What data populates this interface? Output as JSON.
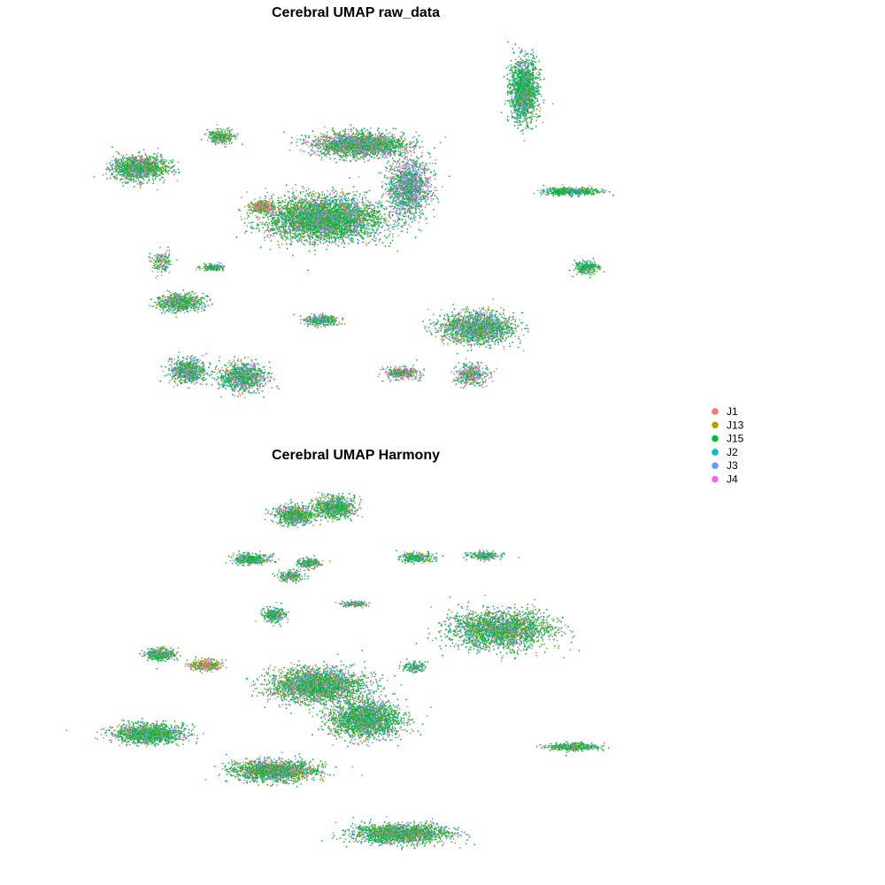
{
  "chart_data": [
    {
      "type": "scatter",
      "title": "Cerebral UMAP raw_data",
      "xlabel": "",
      "ylabel": "",
      "grid": false,
      "axes": false,
      "legend": "right",
      "clusters": [
        {
          "cx": -2.2,
          "cy": 4.2,
          "sx": 0.9,
          "sy": 0.55,
          "n": 1300,
          "mix": [
            0.05,
            0.15,
            0.55,
            0.02,
            0.13,
            0.1
          ]
        },
        {
          "cx": 0.8,
          "cy": 5.8,
          "sx": 0.45,
          "sy": 0.3,
          "n": 280,
          "mix": [
            0.05,
            0.15,
            0.6,
            0.02,
            0.1,
            0.08
          ]
        },
        {
          "cx": 2.3,
          "cy": 2.2,
          "sx": 0.4,
          "sy": 0.28,
          "n": 300,
          "mix": [
            0.1,
            0.4,
            0.2,
            0.02,
            0.08,
            0.2
          ]
        },
        {
          "cx": 4.6,
          "cy": 1.6,
          "sx": 1.9,
          "sy": 1.0,
          "n": 4200,
          "mix": [
            0.05,
            0.12,
            0.55,
            0.02,
            0.16,
            0.1
          ]
        },
        {
          "cx": 5.9,
          "cy": 5.4,
          "sx": 1.5,
          "sy": 0.55,
          "n": 2200,
          "mix": [
            0.05,
            0.1,
            0.5,
            0.02,
            0.15,
            0.18
          ]
        },
        {
          "cx": 7.7,
          "cy": 3.2,
          "sx": 0.7,
          "sy": 1.3,
          "n": 1400,
          "mix": [
            0.03,
            0.05,
            0.4,
            0.02,
            0.25,
            0.25
          ]
        },
        {
          "cx": 11.9,
          "cy": 8.2,
          "sx": 0.45,
          "sy": 1.4,
          "n": 1700,
          "mix": [
            0.03,
            0.08,
            0.6,
            0.02,
            0.2,
            0.07
          ]
        },
        {
          "cx": 13.6,
          "cy": 3.0,
          "sx": 0.9,
          "sy": 0.16,
          "n": 500,
          "mix": [
            0.03,
            0.1,
            0.65,
            0.02,
            0.15,
            0.05
          ]
        },
        {
          "cx": 14.2,
          "cy": -0.9,
          "sx": 0.4,
          "sy": 0.3,
          "n": 260,
          "mix": [
            0.03,
            0.05,
            0.7,
            0.02,
            0.15,
            0.05
          ]
        },
        {
          "cx": 10.2,
          "cy": -4.0,
          "sx": 1.2,
          "sy": 0.7,
          "n": 1800,
          "mix": [
            0.03,
            0.15,
            0.45,
            0.02,
            0.25,
            0.1
          ]
        },
        {
          "cx": 10.0,
          "cy": -6.4,
          "sx": 0.5,
          "sy": 0.5,
          "n": 400,
          "mix": [
            0.05,
            0.15,
            0.3,
            0.02,
            0.2,
            0.28
          ]
        },
        {
          "cx": 7.4,
          "cy": -6.3,
          "sx": 0.55,
          "sy": 0.28,
          "n": 350,
          "mix": [
            0.05,
            0.1,
            0.45,
            0.02,
            0.08,
            0.3
          ]
        },
        {
          "cx": -0.7,
          "cy": -2.7,
          "sx": 0.75,
          "sy": 0.4,
          "n": 700,
          "mix": [
            0.05,
            0.15,
            0.5,
            0.02,
            0.18,
            0.1
          ]
        },
        {
          "cx": 0.5,
          "cy": -0.9,
          "sx": 0.4,
          "sy": 0.16,
          "n": 160,
          "mix": [
            0.05,
            0.1,
            0.55,
            0.02,
            0.18,
            0.1
          ]
        },
        {
          "cx": -0.4,
          "cy": -6.2,
          "sx": 0.6,
          "sy": 0.55,
          "n": 700,
          "mix": [
            0.05,
            0.1,
            0.5,
            0.02,
            0.23,
            0.1
          ]
        },
        {
          "cx": 1.6,
          "cy": -6.5,
          "sx": 0.75,
          "sy": 0.65,
          "n": 1000,
          "mix": [
            0.05,
            0.1,
            0.5,
            0.02,
            0.23,
            0.1
          ]
        },
        {
          "cx": 4.5,
          "cy": -3.6,
          "sx": 0.55,
          "sy": 0.25,
          "n": 350,
          "mix": [
            0.05,
            0.1,
            0.45,
            0.02,
            0.23,
            0.15
          ]
        },
        {
          "cx": -1.4,
          "cy": -0.6,
          "sx": 0.3,
          "sy": 0.5,
          "n": 160,
          "mix": [
            0.05,
            0.1,
            0.45,
            0.02,
            0.18,
            0.2
          ]
        }
      ],
      "xlim": [
        -6.0,
        18.0
      ],
      "ylim": [
        -8.5,
        11.0
      ]
    },
    {
      "type": "scatter",
      "title": "Cerebral UMAP Harmony",
      "xlabel": "",
      "ylabel": "",
      "grid": false,
      "axes": false,
      "legend": "right",
      "clusters": [
        {
          "cx": 0.1,
          "cy": 10.0,
          "sx": 0.6,
          "sy": 0.45,
          "n": 700,
          "mix": [
            0.05,
            0.15,
            0.5,
            0.02,
            0.18,
            0.1
          ]
        },
        {
          "cx": 1.5,
          "cy": 10.4,
          "sx": 0.65,
          "sy": 0.5,
          "n": 800,
          "mix": [
            0.05,
            0.15,
            0.5,
            0.02,
            0.18,
            0.1
          ]
        },
        {
          "cx": -1.4,
          "cy": 7.6,
          "sx": 0.55,
          "sy": 0.28,
          "n": 400,
          "mix": [
            0.05,
            0.1,
            0.55,
            0.02,
            0.18,
            0.1
          ]
        },
        {
          "cx": 0.6,
          "cy": 7.4,
          "sx": 0.35,
          "sy": 0.25,
          "n": 220,
          "mix": [
            0.05,
            0.1,
            0.55,
            0.02,
            0.18,
            0.1
          ]
        },
        {
          "cx": -0.6,
          "cy": 4.6,
          "sx": 0.35,
          "sy": 0.35,
          "n": 300,
          "mix": [
            0.05,
            0.1,
            0.55,
            0.02,
            0.18,
            0.1
          ]
        },
        {
          "cx": 2.2,
          "cy": 5.2,
          "sx": 0.4,
          "sy": 0.15,
          "n": 150,
          "mix": [
            0.05,
            0.15,
            0.45,
            0.02,
            0.18,
            0.15
          ]
        },
        {
          "cx": 4.4,
          "cy": 7.7,
          "sx": 0.55,
          "sy": 0.22,
          "n": 260,
          "mix": [
            0.05,
            0.1,
            0.6,
            0.02,
            0.18,
            0.05
          ]
        },
        {
          "cx": 6.8,
          "cy": 7.8,
          "sx": 0.5,
          "sy": 0.2,
          "n": 220,
          "mix": [
            0.05,
            0.1,
            0.55,
            0.02,
            0.18,
            0.1
          ]
        },
        {
          "cx": 7.3,
          "cy": 3.8,
          "sx": 1.6,
          "sy": 0.9,
          "n": 2300,
          "mix": [
            0.05,
            0.12,
            0.55,
            0.02,
            0.18,
            0.08
          ]
        },
        {
          "cx": -4.6,
          "cy": 2.5,
          "sx": 0.45,
          "sy": 0.3,
          "n": 350,
          "mix": [
            0.05,
            0.1,
            0.6,
            0.02,
            0.15,
            0.08
          ]
        },
        {
          "cx": -3.0,
          "cy": 1.9,
          "sx": 0.5,
          "sy": 0.25,
          "n": 350,
          "mix": [
            0.1,
            0.4,
            0.2,
            0.02,
            0.08,
            0.2
          ]
        },
        {
          "cx": 0.9,
          "cy": 0.8,
          "sx": 1.5,
          "sy": 0.8,
          "n": 2600,
          "mix": [
            0.05,
            0.15,
            0.5,
            0.02,
            0.18,
            0.1
          ]
        },
        {
          "cx": 2.6,
          "cy": -1.0,
          "sx": 1.1,
          "sy": 0.9,
          "n": 2200,
          "mix": [
            0.05,
            0.12,
            0.55,
            0.02,
            0.18,
            0.08
          ]
        },
        {
          "cx": -5.0,
          "cy": -1.8,
          "sx": 1.1,
          "sy": 0.45,
          "n": 1400,
          "mix": [
            0.05,
            0.12,
            0.55,
            0.02,
            0.18,
            0.08
          ]
        },
        {
          "cx": -0.6,
          "cy": -3.8,
          "sx": 1.3,
          "sy": 0.5,
          "n": 1800,
          "mix": [
            0.05,
            0.15,
            0.5,
            0.02,
            0.16,
            0.12
          ]
        },
        {
          "cx": 3.8,
          "cy": -7.2,
          "sx": 1.5,
          "sy": 0.45,
          "n": 1800,
          "mix": [
            0.05,
            0.12,
            0.55,
            0.02,
            0.18,
            0.08
          ]
        },
        {
          "cx": 9.9,
          "cy": -2.5,
          "sx": 0.8,
          "sy": 0.18,
          "n": 400,
          "mix": [
            0.03,
            0.1,
            0.65,
            0.02,
            0.15,
            0.05
          ]
        },
        {
          "cx": 4.3,
          "cy": 1.8,
          "sx": 0.35,
          "sy": 0.25,
          "n": 150,
          "mix": [
            0.05,
            0.1,
            0.55,
            0.02,
            0.18,
            0.1
          ]
        },
        {
          "cx": 0.0,
          "cy": 6.7,
          "sx": 0.4,
          "sy": 0.25,
          "n": 220,
          "mix": [
            0.05,
            0.15,
            0.5,
            0.02,
            0.18,
            0.1
          ]
        }
      ],
      "xlim": [
        -9.0,
        14.0
      ],
      "ylim": [
        -9.0,
        12.0
      ]
    }
  ],
  "legend": {
    "entries": [
      {
        "label": "J1",
        "color": "#F8766D"
      },
      {
        "label": "J13",
        "color": "#B79F00"
      },
      {
        "label": "J15",
        "color": "#00BA38"
      },
      {
        "label": "J2",
        "color": "#00BFC4"
      },
      {
        "label": "J3",
        "color": "#619CFF"
      },
      {
        "label": "J4",
        "color": "#F564E3"
      }
    ]
  }
}
